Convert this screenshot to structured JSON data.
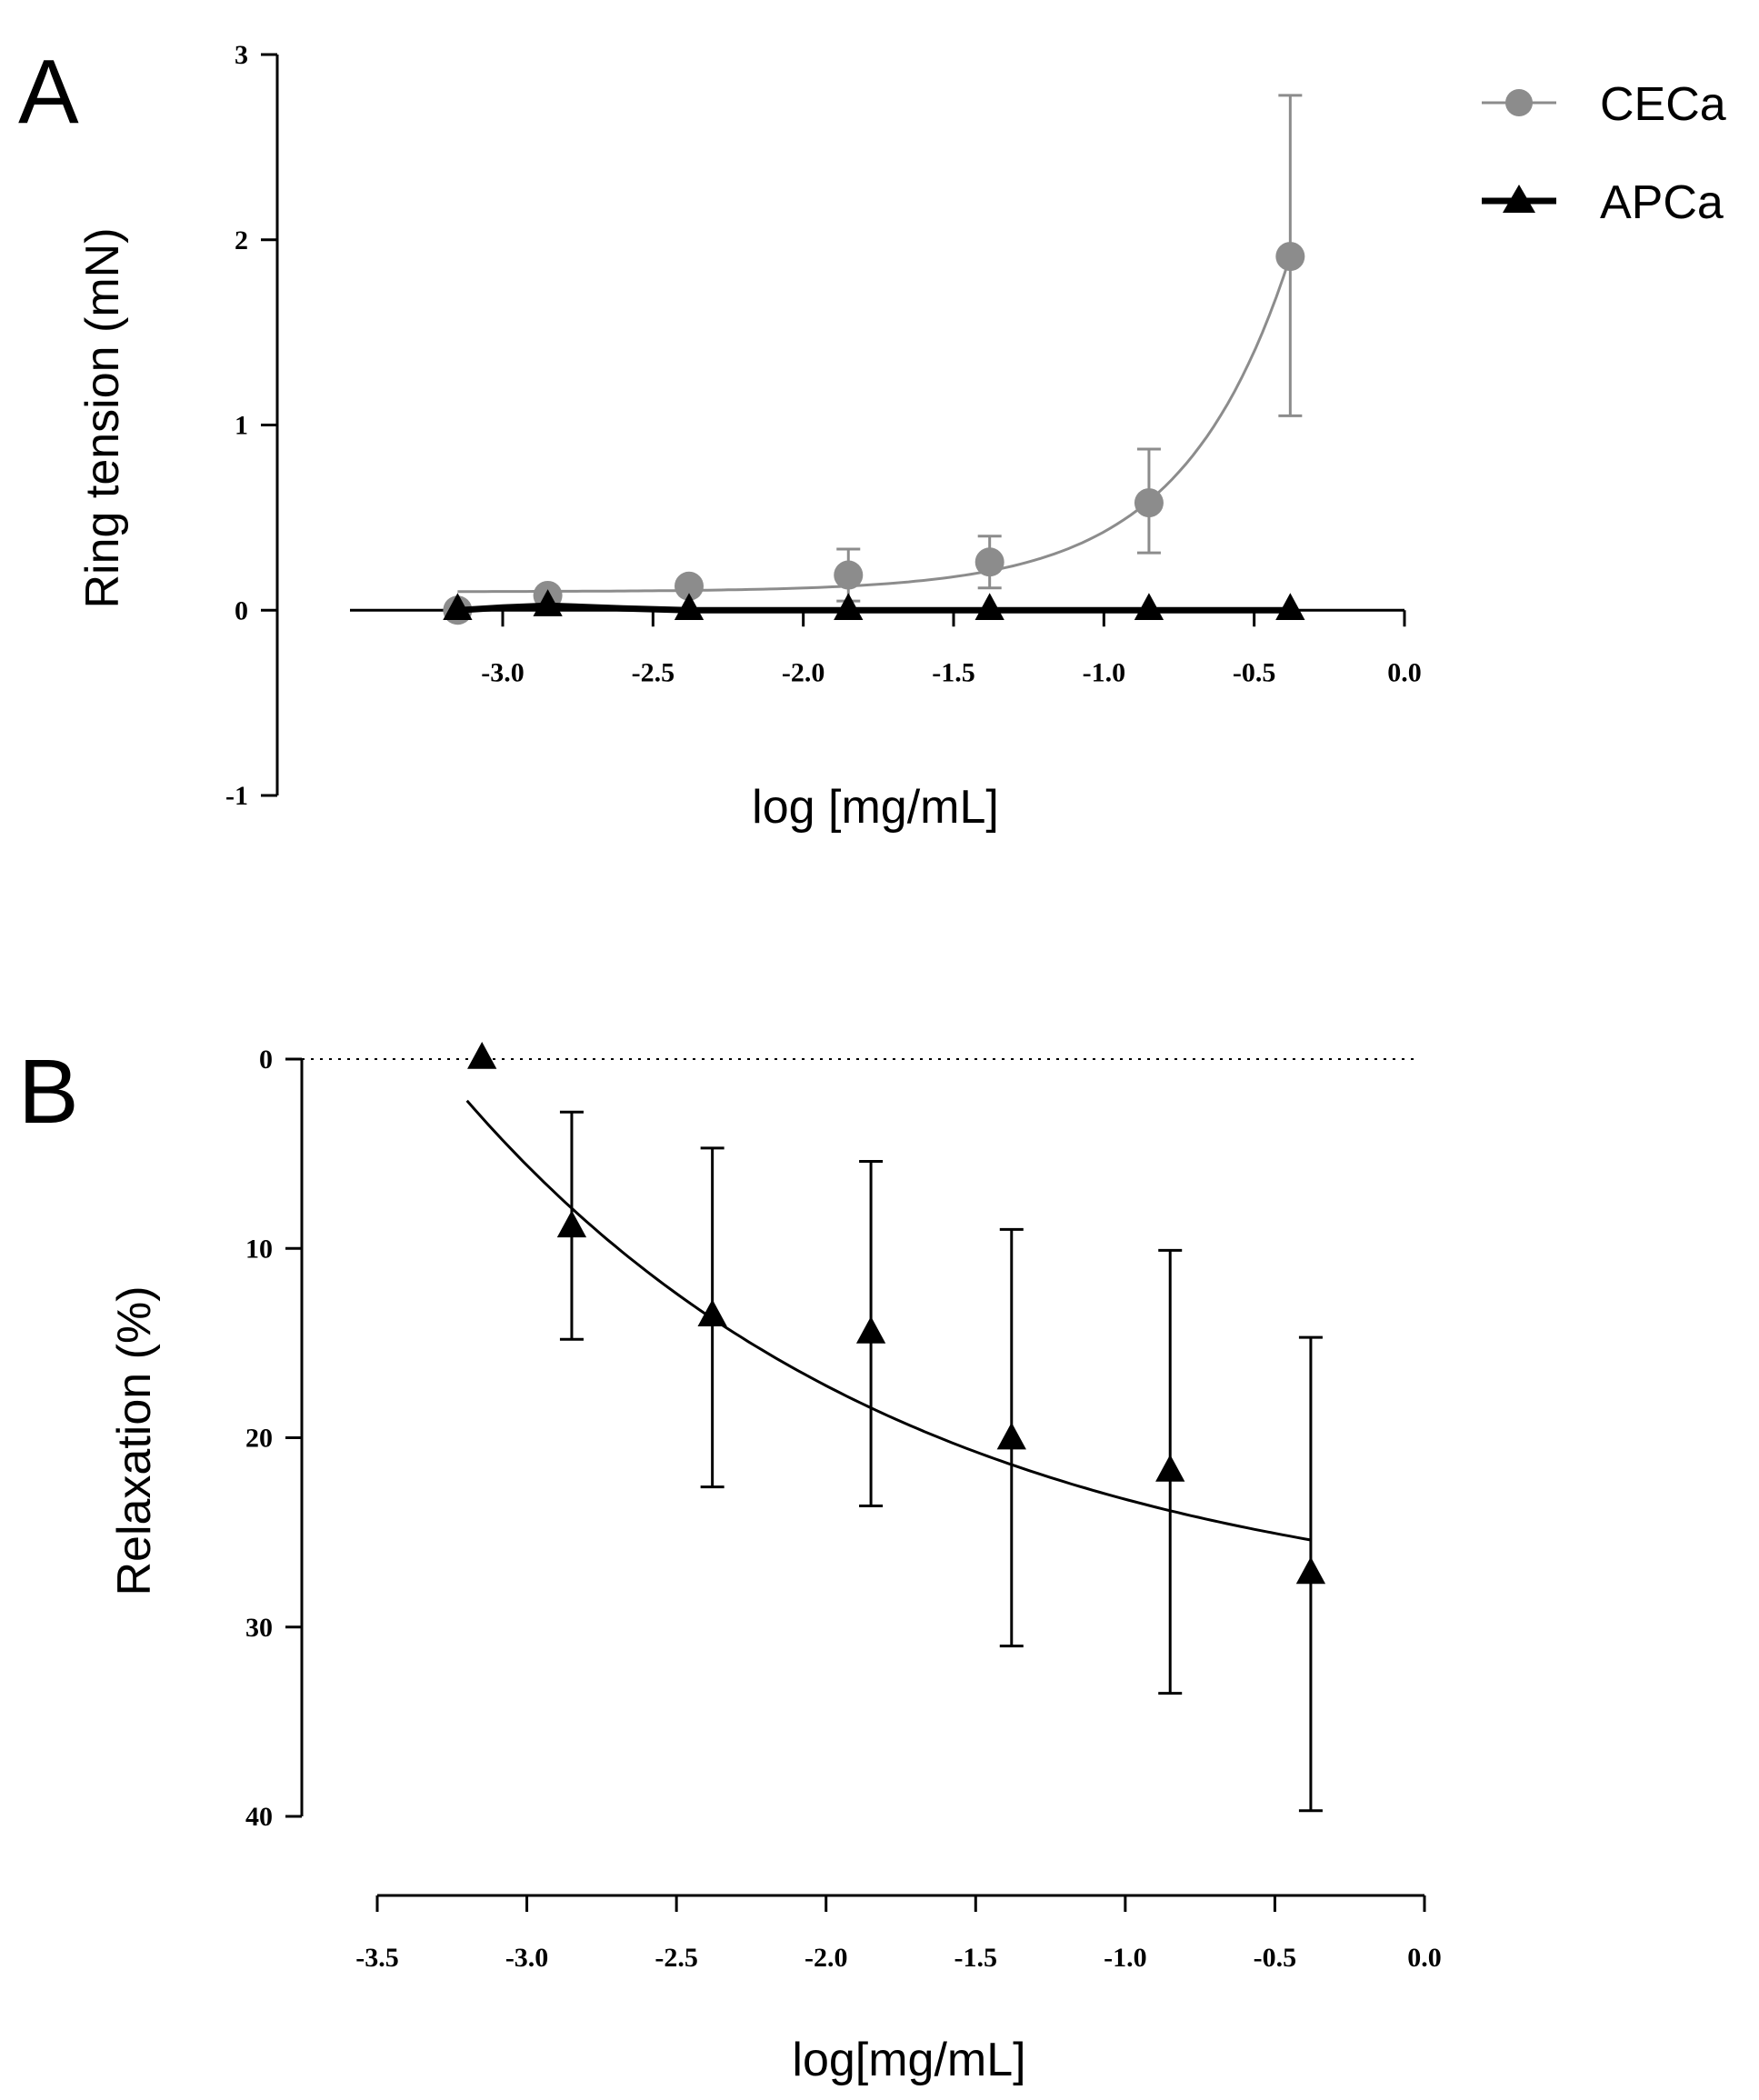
{
  "chart_data": [
    {
      "panel": "A",
      "type": "line",
      "title": "",
      "xlabel": "log [mg/mL]",
      "ylabel": "Ring tension (mN)",
      "xlim": [
        -3.5,
        0.0
      ],
      "ylim": [
        -1,
        3
      ],
      "xticks": [
        -3.0,
        -2.5,
        -2.0,
        -1.5,
        -1.0,
        -0.5,
        0.0
      ],
      "xtick_labels": [
        "-3.0",
        "-2.5",
        "-2.0",
        "-1.5",
        "-1.0",
        "-0.5",
        "0.0"
      ],
      "yticks": [
        -1,
        0,
        1,
        2,
        3
      ],
      "ytick_labels": [
        "-1",
        "0",
        "1",
        "2",
        "3"
      ],
      "legend_position": "top-right",
      "series": [
        {
          "name": "CECa",
          "color": "#8c8c8c",
          "marker": "circle",
          "x": [
            -3.15,
            -2.85,
            -2.38,
            -1.85,
            -1.38,
            -0.85,
            -0.38
          ],
          "y": [
            0.0,
            0.08,
            0.13,
            0.19,
            0.26,
            0.58,
            1.91
          ],
          "err_upper": [
            0.0,
            0.08,
            0.13,
            0.33,
            0.4,
            0.87,
            2.78
          ],
          "err_lower": [
            0.0,
            0.08,
            0.13,
            0.05,
            0.12,
            0.31,
            1.05
          ],
          "fit": {
            "model": "exponential",
            "a": 0.1,
            "b": 0.0,
            "k": 2.78
          }
        },
        {
          "name": "APCa",
          "color": "#000000",
          "marker": "triangle",
          "x": [
            -3.15,
            -2.85,
            -2.38,
            -1.85,
            -1.38,
            -0.85,
            -0.38
          ],
          "y": [
            0.0,
            0.02,
            0.0,
            0.0,
            0.0,
            0.0,
            0.0
          ],
          "fit": {
            "model": "flat",
            "points": [
              [
                -3.15,
                0.0
              ],
              [
                -3.0,
                0.015
              ],
              [
                -2.85,
                0.025
              ],
              [
                -2.6,
                0.01
              ],
              [
                -2.38,
                0.0
              ],
              [
                -0.38,
                0.0
              ]
            ]
          }
        }
      ]
    },
    {
      "panel": "B",
      "type": "line",
      "title": "",
      "xlabel": "log[mg/mL]",
      "ylabel": "Relaxation (%)",
      "xlim": [
        -3.5,
        0.0
      ],
      "ylim": [
        0,
        40
      ],
      "y_inverted": true,
      "reference_line": 0,
      "xticks": [
        -3.5,
        -3.0,
        -2.5,
        -2.0,
        -1.5,
        -1.0,
        -0.5,
        0.0
      ],
      "xtick_labels": [
        "-3.5",
        "-3.0",
        "-2.5",
        "-2.0",
        "-1.5",
        "-1.0",
        "-0.5",
        "0.0"
      ],
      "yticks": [
        0,
        10,
        20,
        30,
        40
      ],
      "ytick_labels": [
        "0",
        "10",
        "20",
        "30",
        "40"
      ],
      "series": [
        {
          "name": "APCa",
          "color": "#000000",
          "marker": "triangle",
          "x": [
            -3.15,
            -2.85,
            -2.38,
            -1.85,
            -1.38,
            -0.85,
            -0.38
          ],
          "y": [
            0.0,
            8.9,
            13.6,
            14.5,
            20.1,
            21.8,
            27.2
          ],
          "err_upper": [
            0.0,
            14.8,
            22.6,
            23.6,
            31.0,
            33.5,
            39.7
          ],
          "err_lower": [
            0.0,
            2.8,
            4.7,
            5.4,
            9.0,
            10.1,
            14.7
          ],
          "fit": {
            "model": "logistic",
            "x_from": -3.2,
            "x_to": -0.38,
            "y_from": 2.2,
            "y_to": 25.4,
            "k": 0.85
          }
        }
      ]
    }
  ],
  "panels": [
    {
      "letter": "A",
      "legend": [
        {
          "label": "CECa"
        },
        {
          "label": "APCa"
        }
      ]
    },
    {
      "letter": "B"
    }
  ]
}
